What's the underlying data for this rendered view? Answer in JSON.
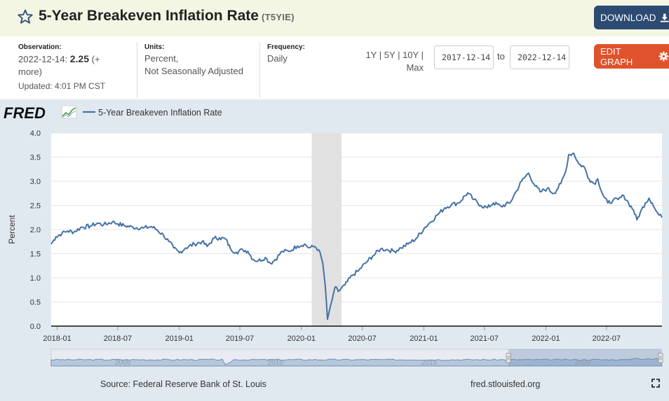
{
  "header": {
    "title": "5-Year Breakeven Inflation Rate",
    "series_id": "(T5YIE)",
    "download_label": "DOWNLOAD",
    "edit_graph_label": "EDIT GRAPH"
  },
  "meta": {
    "observation_label": "Observation:",
    "observation_date": "2022-12-14:",
    "observation_value": "2.25",
    "observation_more_1": "(+",
    "observation_more_2": "more)",
    "updated": "Updated: 4:01 PM CST",
    "units_label": "Units:",
    "units_line1": "Percent,",
    "units_line2": "Not Seasonally Adjusted",
    "frequency_label": "Frequency:",
    "frequency_value": "Daily"
  },
  "range": {
    "r1y": "1Y",
    "r5y": "5Y",
    "r10y": "10Y",
    "sep": "|",
    "max": "Max",
    "start_date": "2017-12-14",
    "end_date": "2022-12-14",
    "to_label": "to"
  },
  "chart_data": {
    "type": "line",
    "title": "",
    "legend": "5-Year Breakeven Inflation Rate",
    "logo_text": "FRED",
    "xlabel": "",
    "ylabel": "Percent",
    "ylim": [
      0,
      4.0
    ],
    "yticks": [
      "0.0",
      "0.5",
      "1.0",
      "1.5",
      "2.0",
      "2.5",
      "3.0",
      "3.5",
      "4.0"
    ],
    "xticks": [
      "2018-01",
      "2018-07",
      "2019-01",
      "2019-07",
      "2020-01",
      "2020-07",
      "2021-01",
      "2021-07",
      "2022-01",
      "2022-07"
    ],
    "xlim": [
      "2017-12-14",
      "2022-12-14"
    ],
    "recession": [
      "2020-02-01",
      "2020-04-30"
    ],
    "line_color": "#4572a7",
    "grid": true,
    "series": [
      {
        "name": "5-Year Breakeven Inflation Rate",
        "points": [
          [
            "2017-12-14",
            1.7
          ],
          [
            "2017-12-28",
            1.85
          ],
          [
            "2018-01-15",
            1.92
          ],
          [
            "2018-02-01",
            1.97
          ],
          [
            "2018-02-20",
            1.95
          ],
          [
            "2018-03-15",
            2.05
          ],
          [
            "2018-04-10",
            2.07
          ],
          [
            "2018-05-01",
            2.13
          ],
          [
            "2018-05-20",
            2.1
          ],
          [
            "2018-06-15",
            2.16
          ],
          [
            "2018-07-01",
            2.12
          ],
          [
            "2018-07-20",
            2.08
          ],
          [
            "2018-08-15",
            2.05
          ],
          [
            "2018-09-15",
            2.03
          ],
          [
            "2018-10-10",
            2.06
          ],
          [
            "2018-10-25",
            2.0
          ],
          [
            "2018-11-15",
            1.88
          ],
          [
            "2018-12-01",
            1.75
          ],
          [
            "2018-12-15",
            1.62
          ],
          [
            "2019-01-01",
            1.52
          ],
          [
            "2019-01-20",
            1.62
          ],
          [
            "2019-02-15",
            1.7
          ],
          [
            "2019-03-10",
            1.75
          ],
          [
            "2019-03-25",
            1.65
          ],
          [
            "2019-04-15",
            1.82
          ],
          [
            "2019-05-01",
            1.83
          ],
          [
            "2019-05-20",
            1.8
          ],
          [
            "2019-06-03",
            1.6
          ],
          [
            "2019-06-20",
            1.53
          ],
          [
            "2019-07-10",
            1.58
          ],
          [
            "2019-07-25",
            1.55
          ],
          [
            "2019-08-10",
            1.38
          ],
          [
            "2019-08-25",
            1.35
          ],
          [
            "2019-09-15",
            1.42
          ],
          [
            "2019-10-01",
            1.3
          ],
          [
            "2019-10-15",
            1.38
          ],
          [
            "2019-11-05",
            1.55
          ],
          [
            "2019-11-25",
            1.55
          ],
          [
            "2019-12-20",
            1.66
          ],
          [
            "2020-01-10",
            1.7
          ],
          [
            "2020-01-24",
            1.62
          ],
          [
            "2020-02-10",
            1.65
          ],
          [
            "2020-02-22",
            1.58
          ],
          [
            "2020-03-05",
            1.3
          ],
          [
            "2020-03-12",
            0.85
          ],
          [
            "2020-03-19",
            0.14
          ],
          [
            "2020-03-24",
            0.3
          ],
          [
            "2020-04-01",
            0.52
          ],
          [
            "2020-04-10",
            0.8
          ],
          [
            "2020-04-20",
            0.72
          ],
          [
            "2020-05-10",
            0.85
          ],
          [
            "2020-06-01",
            1.05
          ],
          [
            "2020-06-20",
            1.15
          ],
          [
            "2020-07-10",
            1.3
          ],
          [
            "2020-08-01",
            1.45
          ],
          [
            "2020-08-25",
            1.6
          ],
          [
            "2020-09-15",
            1.58
          ],
          [
            "2020-10-05",
            1.55
          ],
          [
            "2020-10-25",
            1.62
          ],
          [
            "2020-11-15",
            1.7
          ],
          [
            "2020-12-10",
            1.82
          ],
          [
            "2021-01-05",
            2.05
          ],
          [
            "2021-01-20",
            2.15
          ],
          [
            "2021-02-10",
            2.3
          ],
          [
            "2021-03-05",
            2.45
          ],
          [
            "2021-03-25",
            2.52
          ],
          [
            "2021-04-15",
            2.55
          ],
          [
            "2021-05-12",
            2.76
          ],
          [
            "2021-05-30",
            2.62
          ],
          [
            "2021-06-20",
            2.5
          ],
          [
            "2021-07-10",
            2.45
          ],
          [
            "2021-07-28",
            2.55
          ],
          [
            "2021-08-20",
            2.48
          ],
          [
            "2021-09-15",
            2.55
          ],
          [
            "2021-10-05",
            2.8
          ],
          [
            "2021-10-20",
            3.0
          ],
          [
            "2021-11-10",
            3.17
          ],
          [
            "2021-11-30",
            2.9
          ],
          [
            "2021-12-15",
            2.78
          ],
          [
            "2022-01-05",
            2.85
          ],
          [
            "2022-01-25",
            2.75
          ],
          [
            "2022-02-15",
            2.95
          ],
          [
            "2022-03-01",
            3.2
          ],
          [
            "2022-03-10",
            3.55
          ],
          [
            "2022-03-25",
            3.58
          ],
          [
            "2022-04-10",
            3.35
          ],
          [
            "2022-04-25",
            3.3
          ],
          [
            "2022-05-10",
            3.05
          ],
          [
            "2022-05-25",
            2.95
          ],
          [
            "2022-06-05",
            3.05
          ],
          [
            "2022-06-20",
            2.72
          ],
          [
            "2022-07-05",
            2.55
          ],
          [
            "2022-07-20",
            2.6
          ],
          [
            "2022-08-05",
            2.62
          ],
          [
            "2022-08-22",
            2.7
          ],
          [
            "2022-09-05",
            2.55
          ],
          [
            "2022-09-20",
            2.4
          ],
          [
            "2022-09-30",
            2.2
          ],
          [
            "2022-10-10",
            2.35
          ],
          [
            "2022-10-25",
            2.55
          ],
          [
            "2022-11-05",
            2.65
          ],
          [
            "2022-11-15",
            2.55
          ],
          [
            "2022-11-25",
            2.4
          ],
          [
            "2022-12-05",
            2.3
          ],
          [
            "2022-12-14",
            2.25
          ]
        ]
      }
    ],
    "navigator": {
      "labels": [
        "2005",
        "2010",
        "2015",
        "2020"
      ]
    }
  },
  "footer": {
    "source": "Source: Federal Reserve Bank of St. Louis",
    "site": "fred.stlouisfed.org"
  }
}
